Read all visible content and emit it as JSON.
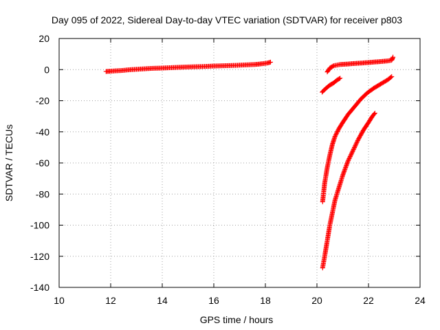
{
  "chart_data": {
    "type": "scatter",
    "title": "Day 095 of 2022, Sidereal Day-to-day VTEC variation (SDTVAR) for receiver p803",
    "xlabel": "GPS time / hours",
    "ylabel": "SDTVAR / TECUs",
    "xlim": [
      10,
      24
    ],
    "ylim": [
      -140,
      20
    ],
    "xticks": [
      10,
      12,
      14,
      16,
      18,
      20,
      22,
      24
    ],
    "yticks": [
      20,
      0,
      -20,
      -40,
      -60,
      -80,
      -100,
      -120,
      -140
    ],
    "grid": true,
    "marker": "plus",
    "series_color": "#ff0000",
    "series": [
      {
        "points": [
          [
            11.82,
            -1.2
          ],
          [
            12.0,
            -1.0
          ],
          [
            12.4,
            -0.6
          ],
          [
            12.8,
            0.0
          ],
          [
            13.2,
            0.4
          ],
          [
            13.6,
            0.8
          ],
          [
            14.0,
            1.0
          ],
          [
            14.4,
            1.3
          ],
          [
            14.8,
            1.6
          ],
          [
            15.2,
            1.8
          ],
          [
            15.6,
            2.0
          ],
          [
            16.0,
            2.3
          ],
          [
            16.4,
            2.5
          ],
          [
            16.8,
            2.7
          ],
          [
            17.2,
            3.0
          ],
          [
            17.6,
            3.3
          ],
          [
            17.9,
            3.8
          ],
          [
            18.1,
            4.3
          ],
          [
            18.2,
            4.8
          ]
        ]
      },
      {
        "points": [
          [
            20.4,
            -1.5
          ],
          [
            20.5,
            1.0
          ],
          [
            20.65,
            2.5
          ],
          [
            20.9,
            3.3
          ],
          [
            21.2,
            3.6
          ],
          [
            21.5,
            4.0
          ],
          [
            21.8,
            4.3
          ],
          [
            22.1,
            4.7
          ],
          [
            22.4,
            5.1
          ],
          [
            22.7,
            5.5
          ],
          [
            22.9,
            6.0
          ],
          [
            22.95,
            8.0
          ]
        ]
      },
      {
        "points": [
          [
            20.2,
            -14.5
          ],
          [
            20.35,
            -12.0
          ],
          [
            20.5,
            -10.0
          ],
          [
            20.65,
            -8.5
          ],
          [
            20.8,
            -6.5
          ],
          [
            20.9,
            -5.5
          ]
        ]
      },
      {
        "points": [
          [
            20.22,
            -85
          ],
          [
            20.3,
            -73
          ],
          [
            20.4,
            -63
          ],
          [
            20.5,
            -55
          ],
          [
            20.6,
            -48
          ],
          [
            20.7,
            -43
          ],
          [
            20.85,
            -38
          ],
          [
            21.0,
            -34
          ],
          [
            21.2,
            -29
          ],
          [
            21.45,
            -24
          ],
          [
            21.7,
            -19
          ],
          [
            21.95,
            -15
          ],
          [
            22.2,
            -12
          ],
          [
            22.5,
            -9
          ],
          [
            22.75,
            -6.5
          ],
          [
            22.9,
            -4.5
          ]
        ]
      },
      {
        "points": [
          [
            20.22,
            -127.5
          ],
          [
            20.3,
            -120
          ],
          [
            20.4,
            -110
          ],
          [
            20.5,
            -100
          ],
          [
            20.6,
            -92
          ],
          [
            20.7,
            -84
          ],
          [
            20.85,
            -76
          ],
          [
            21.0,
            -68
          ],
          [
            21.2,
            -59
          ],
          [
            21.4,
            -52
          ],
          [
            21.6,
            -45
          ],
          [
            21.8,
            -39
          ],
          [
            22.0,
            -34
          ],
          [
            22.15,
            -30
          ],
          [
            22.25,
            -28
          ]
        ]
      }
    ]
  }
}
